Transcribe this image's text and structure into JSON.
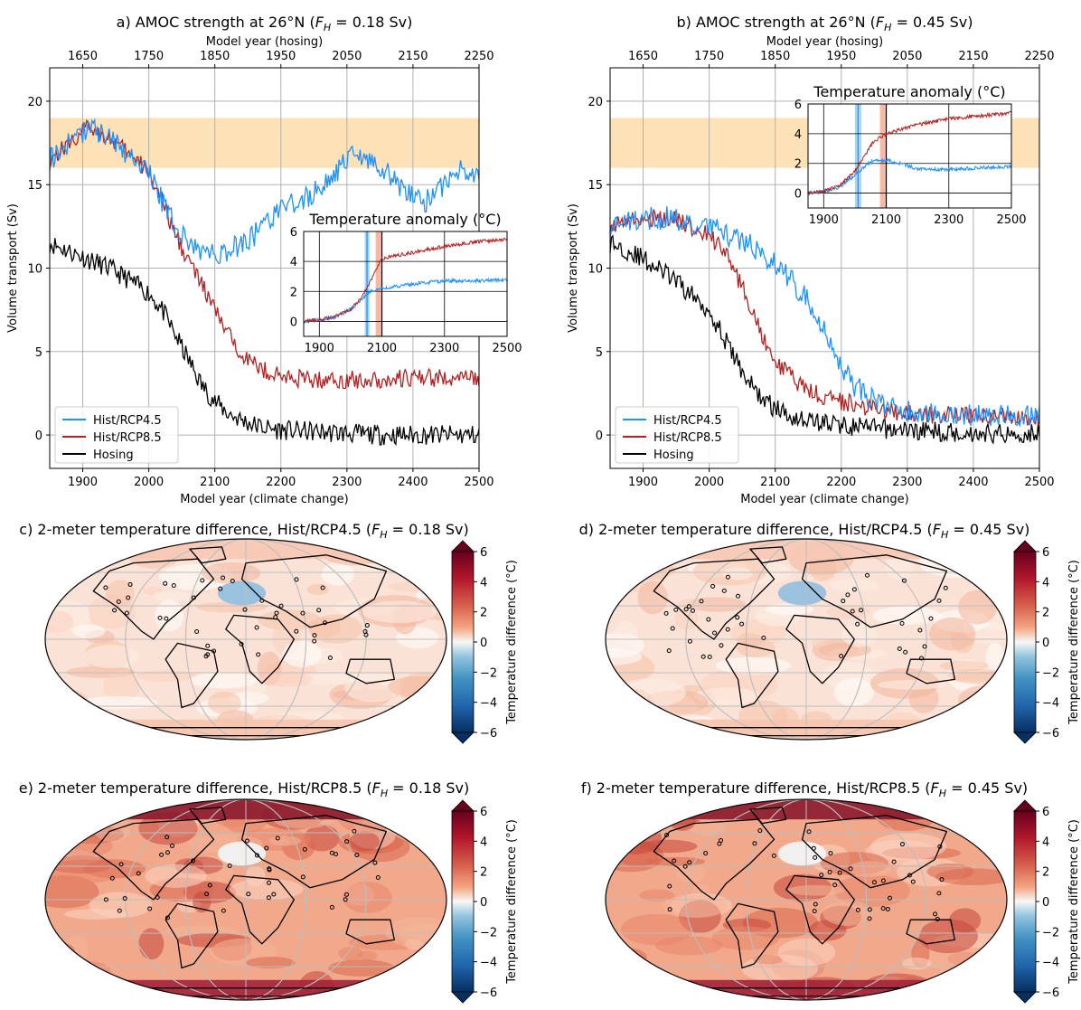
{
  "colors": {
    "rcp45": "#1e90ff",
    "rcp85": "#b22222",
    "hosing": "#000000",
    "band": "#fde2b8",
    "grid": "#b0b0b0",
    "inset_blue_band": "#a8d4f5",
    "inset_red_band": "#f6b9a6"
  },
  "legend": [
    {
      "label": "Hist/RCP4.5",
      "key": "rcp45"
    },
    {
      "label": "Hist/RCP8.5",
      "key": "rcp85"
    },
    {
      "label": "Hosing",
      "key": "hosing"
    }
  ],
  "chart_data": [
    {
      "id": "a",
      "type": "line",
      "title_prefix": "a) AMOC strength at 26°N (",
      "title_fh": "F",
      "title_fh_sub": "H",
      "title_suffix": " = 0.18 Sv)",
      "xlabel": "Model year (climate change)",
      "xlabel_top": "Model year (hosing)",
      "ylabel": "Volume transport (Sv)",
      "xlim": [
        1850,
        2500
      ],
      "ylim": [
        -2,
        22
      ],
      "xticks": [
        1900,
        2000,
        2100,
        2200,
        2300,
        2400,
        2500
      ],
      "xticks_top": [
        1650,
        1750,
        1850,
        1950,
        2050,
        2150,
        2250
      ],
      "yticks": [
        0,
        5,
        10,
        15,
        20
      ],
      "band": [
        16,
        19
      ],
      "series": [
        {
          "name": "Hist/RCP4.5",
          "key": "rcp45",
          "x": [
            1850,
            1880,
            1910,
            1940,
            1970,
            2000,
            2020,
            2040,
            2060,
            2080,
            2100,
            2120,
            2140,
            2160,
            2180,
            2200,
            2230,
            2260,
            2290,
            2310,
            2330,
            2360,
            2390,
            2420,
            2450,
            2470,
            2500
          ],
          "y": [
            16.5,
            17.5,
            18.5,
            17.8,
            16.8,
            15.8,
            14.0,
            12.5,
            11.5,
            11.0,
            10.8,
            11.0,
            11.5,
            12.0,
            12.8,
            13.5,
            14.0,
            14.8,
            16.0,
            16.8,
            16.5,
            15.8,
            14.5,
            14.0,
            15.0,
            16.0,
            15.5
          ]
        },
        {
          "name": "Hist/RCP8.5",
          "key": "rcp85",
          "x": [
            1850,
            1880,
            1910,
            1940,
            1970,
            2000,
            2020,
            2040,
            2060,
            2080,
            2100,
            2120,
            2140,
            2160,
            2180,
            2200,
            2250,
            2300,
            2350,
            2400,
            2450,
            2500
          ],
          "y": [
            16.5,
            17.5,
            18.5,
            17.8,
            16.8,
            15.8,
            14.0,
            12.0,
            10.5,
            9.0,
            7.5,
            6.0,
            5.0,
            4.2,
            3.8,
            3.5,
            3.3,
            3.3,
            3.3,
            3.4,
            3.4,
            3.4
          ]
        },
        {
          "name": "Hosing",
          "key": "hosing",
          "x": [
            1850,
            1880,
            1910,
            1940,
            1970,
            2000,
            2020,
            2040,
            2060,
            2080,
            2100,
            2120,
            2140,
            2160,
            2180,
            2200,
            2250,
            2300,
            2350,
            2400,
            2450,
            2500
          ],
          "y": [
            11.5,
            11.0,
            10.5,
            10.0,
            9.3,
            8.5,
            7.5,
            6.0,
            4.5,
            3.0,
            2.0,
            1.3,
            0.9,
            0.6,
            0.4,
            0.3,
            0.2,
            0.1,
            0.0,
            0.0,
            0.0,
            0.0
          ]
        }
      ],
      "inset": {
        "title": "Temperature anomaly (°C)",
        "xlim": [
          1850,
          2500
        ],
        "ylim": [
          -1,
          6
        ],
        "xticks": [
          1900,
          2100,
          2300,
          2500
        ],
        "yticks": [
          0,
          2,
          4,
          6
        ],
        "blue_band": [
          2045,
          2060
        ],
        "red_band": [
          2080,
          2100
        ],
        "series": [
          {
            "key": "rcp45",
            "x": [
              1850,
              1900,
              1950,
              2000,
              2030,
              2060,
              2100,
              2200,
              2300,
              2400,
              2500
            ],
            "y": [
              0.0,
              0.1,
              0.3,
              0.8,
              1.4,
              2.0,
              2.2,
              2.5,
              2.7,
              2.7,
              2.8
            ]
          },
          {
            "key": "rcp85",
            "x": [
              1850,
              1900,
              1950,
              2000,
              2030,
              2060,
              2080,
              2100,
              2150,
              2200,
              2300,
              2400,
              2500
            ],
            "y": [
              0.0,
              0.1,
              0.3,
              0.8,
              1.5,
              2.5,
              3.4,
              4.2,
              4.4,
              4.6,
              5.0,
              5.3,
              5.5
            ]
          }
        ]
      }
    },
    {
      "id": "b",
      "type": "line",
      "title_prefix": "b) AMOC strength at 26°N (",
      "title_fh": "F",
      "title_fh_sub": "H",
      "title_suffix": " = 0.45 Sv)",
      "xlabel": "Model year (climate change)",
      "xlabel_top": "Model year (hosing)",
      "ylabel": "Volume transport (Sv)",
      "xlim": [
        1850,
        2500
      ],
      "ylim": [
        -2,
        22
      ],
      "xticks": [
        1900,
        2000,
        2100,
        2200,
        2300,
        2400,
        2500
      ],
      "xticks_top": [
        1650,
        1750,
        1850,
        1950,
        2050,
        2150,
        2250
      ],
      "yticks": [
        0,
        5,
        10,
        15,
        20
      ],
      "band": [
        16,
        19
      ],
      "series": [
        {
          "name": "Hist/RCP4.5",
          "key": "rcp45",
          "x": [
            1850,
            1880,
            1910,
            1940,
            1970,
            2000,
            2030,
            2060,
            2090,
            2120,
            2150,
            2180,
            2200,
            2220,
            2250,
            2300,
            2350,
            2400,
            2450,
            2500
          ],
          "y": [
            12.5,
            12.8,
            13.0,
            13.0,
            12.8,
            12.5,
            12.0,
            11.5,
            10.5,
            9.5,
            8.0,
            6.0,
            4.0,
            3.0,
            2.0,
            1.5,
            1.3,
            1.2,
            1.2,
            1.2
          ]
        },
        {
          "name": "Hist/RCP8.5",
          "key": "rcp85",
          "x": [
            1850,
            1880,
            1910,
            1940,
            1970,
            2000,
            2030,
            2060,
            2080,
            2100,
            2130,
            2160,
            2200,
            2250,
            2300,
            2350,
            2400,
            2450,
            2500
          ],
          "y": [
            12.5,
            12.8,
            13.0,
            13.0,
            12.5,
            12.0,
            10.5,
            8.0,
            6.0,
            4.5,
            3.2,
            2.5,
            2.0,
            1.6,
            1.3,
            1.2,
            1.1,
            1.1,
            1.1
          ]
        },
        {
          "name": "Hosing",
          "key": "hosing",
          "x": [
            1850,
            1880,
            1910,
            1940,
            1970,
            2000,
            2020,
            2040,
            2060,
            2080,
            2100,
            2120,
            2150,
            2200,
            2250,
            2300,
            2350,
            2400,
            2450,
            2500
          ],
          "y": [
            11.5,
            11.0,
            10.3,
            9.5,
            8.5,
            7.5,
            6.0,
            4.5,
            3.2,
            2.2,
            1.6,
            1.2,
            0.9,
            0.6,
            0.4,
            0.3,
            0.2,
            0.1,
            0.1,
            0.1
          ]
        }
      ],
      "inset": {
        "title": "Temperature anomaly (°C)",
        "xlim": [
          1850,
          2500
        ],
        "ylim": [
          -1,
          6
        ],
        "xticks": [
          1900,
          2100,
          2300,
          2500
        ],
        "yticks": [
          0,
          2,
          4,
          6
        ],
        "blue_band": [
          2000,
          2020
        ],
        "red_band": [
          2080,
          2100
        ],
        "series": [
          {
            "key": "rcp45",
            "x": [
              1850,
              1900,
              1950,
              2000,
              2030,
              2060,
              2100,
              2150,
              2200,
              2300,
              2400,
              2500
            ],
            "y": [
              0.0,
              0.1,
              0.4,
              1.2,
              1.8,
              2.2,
              2.2,
              2.0,
              1.6,
              1.6,
              1.7,
              1.8
            ]
          },
          {
            "key": "rcp85",
            "x": [
              1850,
              1900,
              1950,
              2000,
              2030,
              2060,
              2100,
              2150,
              2200,
              2300,
              2400,
              2500
            ],
            "y": [
              0.0,
              0.1,
              0.5,
              1.5,
              2.5,
              3.5,
              4.0,
              4.3,
              4.6,
              5.0,
              5.2,
              5.4
            ]
          }
        ]
      }
    },
    {
      "id": "c",
      "type": "heatmap",
      "title_prefix": "c) 2-meter temperature difference, Hist/RCP4.5 (",
      "title_fh": "F",
      "title_fh_sub": "H",
      "title_suffix": " = 0.18 Sv)",
      "colorbar_label": "Temperature difference (°C)",
      "colorbar_ticks": [
        6,
        4,
        2,
        0,
        -2,
        -4,
        -6
      ],
      "mean_anomaly": 1.0
    },
    {
      "id": "d",
      "type": "heatmap",
      "title_prefix": "d) 2-meter temperature difference, Hist/RCP4.5 (",
      "title_fh": "F",
      "title_fh_sub": "H",
      "title_suffix": " = 0.45 Sv)",
      "colorbar_label": "Temperature difference (°C)",
      "colorbar_ticks": [
        6,
        4,
        2,
        0,
        -2,
        -4,
        -6
      ],
      "mean_anomaly": 1.0
    },
    {
      "id": "e",
      "type": "heatmap",
      "title_prefix": "e) 2-meter temperature difference, Hist/RCP8.5 (",
      "title_fh": "F",
      "title_fh_sub": "H",
      "title_suffix": " = 0.18 Sv)",
      "colorbar_label": "Temperature difference (°C)",
      "colorbar_ticks": [
        6,
        4,
        2,
        0,
        -2,
        -4,
        -6
      ],
      "mean_anomaly": 2.5
    },
    {
      "id": "f",
      "type": "heatmap",
      "title_prefix": "f) 2-meter temperature difference, Hist/RCP8.5 (",
      "title_fh": "F",
      "title_fh_sub": "H",
      "title_suffix": " = 0.45 Sv)",
      "colorbar_label": "Temperature difference (°C)",
      "colorbar_ticks": [
        6,
        4,
        2,
        0,
        -2,
        -4,
        -6
      ],
      "mean_anomaly": 2.5
    }
  ]
}
